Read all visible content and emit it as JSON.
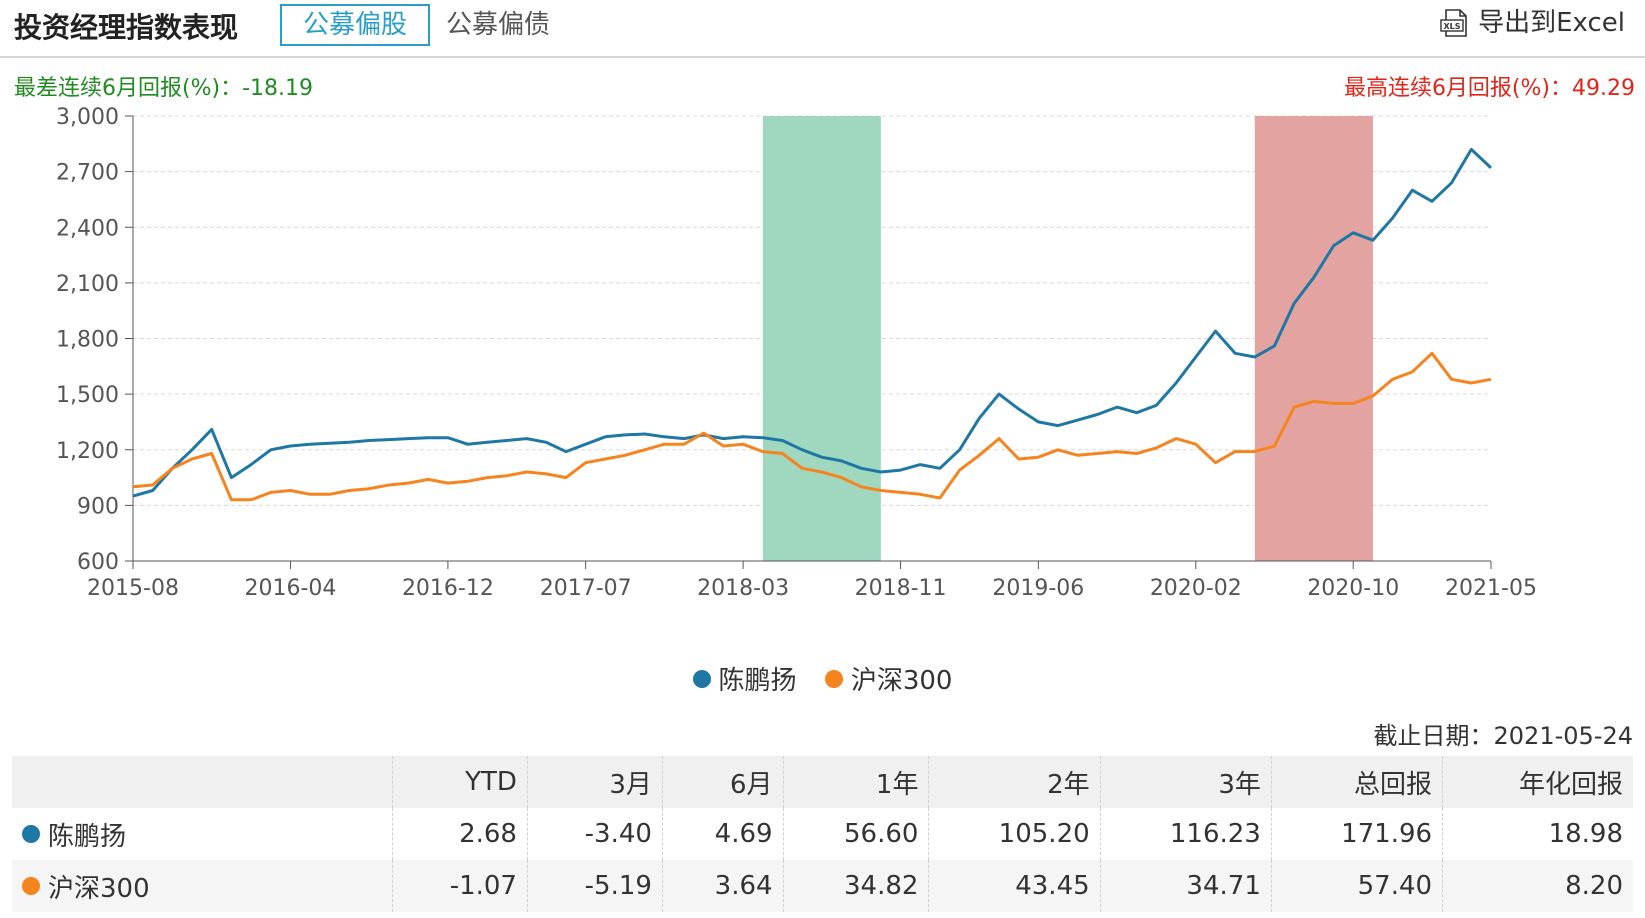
{
  "header": {
    "title": "投资经理指数表现",
    "tabs": [
      {
        "label": "公募偏股",
        "active": true
      },
      {
        "label": "公募偏债",
        "active": false
      }
    ],
    "export_label": "导出到Excel",
    "export_icon": "xls-icon"
  },
  "stats": {
    "worst_label": "最差连续6月回报(%)：",
    "worst_value": "-18.19",
    "best_label": "最高连续6月回报(%)：",
    "best_value": "49.29"
  },
  "colors": {
    "manager": "#1f77a4",
    "index": "#f5841f",
    "worst_band": "#9fd8bf",
    "best_band": "#e3a3a0",
    "worst_text": "#228b22",
    "best_text": "#e0261a",
    "accent": "#2a9ec9"
  },
  "chart_data": {
    "type": "line",
    "title": "",
    "xlabel": "",
    "ylabel": "",
    "ylim": [
      600,
      3000
    ],
    "yticks": [
      "600",
      "900",
      "1,200",
      "1,500",
      "1,800",
      "2,100",
      "2,400",
      "2,700",
      "3,000"
    ],
    "xlim": [
      "2015-08",
      "2021-05"
    ],
    "xticks": [
      "2015-08",
      "2016-04",
      "2016-12",
      "2017-07",
      "2018-03",
      "2018-11",
      "2019-06",
      "2020-02",
      "2020-10",
      "2021-05"
    ],
    "grid": true,
    "legend_position": "bottom",
    "highlight_bands": [
      {
        "name": "worst",
        "from": "2018-04",
        "to": "2018-10"
      },
      {
        "name": "best",
        "from": "2020-05",
        "to": "2020-11"
      }
    ],
    "series": [
      {
        "name": "陈鹏扬",
        "x": [
          "2015-08",
          "2015-09",
          "2015-10",
          "2015-11",
          "2015-12",
          "2016-01",
          "2016-02",
          "2016-03",
          "2016-04",
          "2016-05",
          "2016-06",
          "2016-07",
          "2016-08",
          "2016-09",
          "2016-10",
          "2016-11",
          "2016-12",
          "2017-01",
          "2017-02",
          "2017-03",
          "2017-04",
          "2017-05",
          "2017-06",
          "2017-07",
          "2017-08",
          "2017-09",
          "2017-10",
          "2017-11",
          "2017-12",
          "2018-01",
          "2018-02",
          "2018-03",
          "2018-04",
          "2018-05",
          "2018-06",
          "2018-07",
          "2018-08",
          "2018-09",
          "2018-10",
          "2018-11",
          "2018-12",
          "2019-01",
          "2019-02",
          "2019-03",
          "2019-04",
          "2019-05",
          "2019-06",
          "2019-07",
          "2019-08",
          "2019-09",
          "2019-10",
          "2019-11",
          "2019-12",
          "2020-01",
          "2020-02",
          "2020-03",
          "2020-04",
          "2020-05",
          "2020-06",
          "2020-07",
          "2020-08",
          "2020-09",
          "2020-10",
          "2020-11",
          "2020-12",
          "2021-01",
          "2021-02",
          "2021-03",
          "2021-04",
          "2021-05"
        ],
        "y": [
          950,
          980,
          1100,
          1200,
          1310,
          1050,
          1120,
          1200,
          1220,
          1230,
          1235,
          1240,
          1250,
          1255,
          1260,
          1265,
          1265,
          1230,
          1240,
          1250,
          1260,
          1240,
          1190,
          1230,
          1270,
          1280,
          1285,
          1270,
          1260,
          1280,
          1260,
          1270,
          1265,
          1250,
          1200,
          1160,
          1140,
          1100,
          1080,
          1090,
          1120,
          1100,
          1200,
          1370,
          1500,
          1420,
          1350,
          1330,
          1360,
          1390,
          1430,
          1400,
          1440,
          1560,
          1700,
          1840,
          1720,
          1700,
          1760,
          1990,
          2130,
          2300,
          2370,
          2330,
          2450,
          2600,
          2540,
          2640,
          2820,
          2720
        ]
      },
      {
        "name": "沪深300",
        "x": [
          "2015-08",
          "2015-09",
          "2015-10",
          "2015-11",
          "2015-12",
          "2016-01",
          "2016-02",
          "2016-03",
          "2016-04",
          "2016-05",
          "2016-06",
          "2016-07",
          "2016-08",
          "2016-09",
          "2016-10",
          "2016-11",
          "2016-12",
          "2017-01",
          "2017-02",
          "2017-03",
          "2017-04",
          "2017-05",
          "2017-06",
          "2017-07",
          "2017-08",
          "2017-09",
          "2017-10",
          "2017-11",
          "2017-12",
          "2018-01",
          "2018-02",
          "2018-03",
          "2018-04",
          "2018-05",
          "2018-06",
          "2018-07",
          "2018-08",
          "2018-09",
          "2018-10",
          "2018-11",
          "2018-12",
          "2019-01",
          "2019-02",
          "2019-03",
          "2019-04",
          "2019-05",
          "2019-06",
          "2019-07",
          "2019-08",
          "2019-09",
          "2019-10",
          "2019-11",
          "2019-12",
          "2020-01",
          "2020-02",
          "2020-03",
          "2020-04",
          "2020-05",
          "2020-06",
          "2020-07",
          "2020-08",
          "2020-09",
          "2020-10",
          "2020-11",
          "2020-12",
          "2021-01",
          "2021-02",
          "2021-03",
          "2021-04",
          "2021-05"
        ],
        "y": [
          1000,
          1010,
          1100,
          1150,
          1180,
          930,
          930,
          970,
          980,
          960,
          960,
          980,
          990,
          1010,
          1020,
          1040,
          1020,
          1030,
          1050,
          1060,
          1080,
          1070,
          1050,
          1130,
          1150,
          1170,
          1200,
          1230,
          1230,
          1290,
          1220,
          1230,
          1190,
          1180,
          1100,
          1080,
          1050,
          1000,
          980,
          970,
          960,
          940,
          1090,
          1170,
          1260,
          1150,
          1160,
          1200,
          1170,
          1180,
          1190,
          1180,
          1210,
          1260,
          1230,
          1130,
          1190,
          1190,
          1220,
          1430,
          1460,
          1450,
          1450,
          1490,
          1580,
          1620,
          1720,
          1580,
          1560,
          1580
        ]
      }
    ]
  },
  "deadline": {
    "label": "截止日期：",
    "value": "2021-05-24"
  },
  "table": {
    "headers": [
      "",
      "YTD",
      "3月",
      "6月",
      "1年",
      "2年",
      "3年",
      "总回报",
      "年化回报"
    ],
    "rows": [
      {
        "name": "陈鹏扬",
        "values": [
          "2.68",
          "-3.40",
          "4.69",
          "56.60",
          "105.20",
          "116.23",
          "171.96",
          "18.98"
        ]
      },
      {
        "name": "沪深300",
        "values": [
          "-1.07",
          "-5.19",
          "3.64",
          "34.82",
          "43.45",
          "34.71",
          "57.40",
          "8.20"
        ]
      }
    ]
  }
}
